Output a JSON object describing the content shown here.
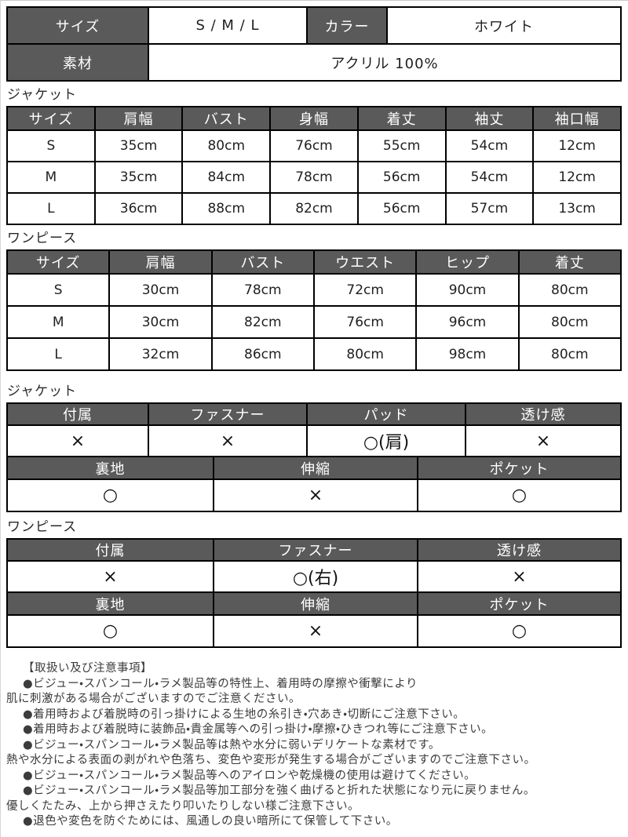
{
  "colors": {
    "header_bg": "#5a5a5a",
    "header_text": "#ffffff",
    "border": "#000000",
    "page_bg": "#ffffff"
  },
  "spec_table": {
    "size_label": "サイズ",
    "size_value": "S / M / L",
    "color_label": "カラー",
    "color_value": "ホワイト",
    "material_label": "素材",
    "material_value": "アクリル 100%"
  },
  "jacket_size": {
    "section_label": "ジャケット",
    "headers": [
      "サイズ",
      "肩幅",
      "バスト",
      "身幅",
      "着丈",
      "袖丈",
      "袖口幅"
    ],
    "rows": [
      [
        "S",
        "35cm",
        "80cm",
        "76cm",
        "55cm",
        "54cm",
        "12cm"
      ],
      [
        "M",
        "35cm",
        "84cm",
        "78cm",
        "56cm",
        "54cm",
        "12cm"
      ],
      [
        "L",
        "36cm",
        "88cm",
        "82cm",
        "56cm",
        "57cm",
        "13cm"
      ]
    ]
  },
  "onepiece_size": {
    "section_label": "ワンピース",
    "headers": [
      "サイズ",
      "肩幅",
      "バスト",
      "ウエスト",
      "ヒップ",
      "着丈"
    ],
    "rows": [
      [
        "S",
        "30cm",
        "78cm",
        "72cm",
        "90cm",
        "80cm"
      ],
      [
        "M",
        "30cm",
        "82cm",
        "76cm",
        "96cm",
        "80cm"
      ],
      [
        "L",
        "32cm",
        "86cm",
        "80cm",
        "98cm",
        "80cm"
      ]
    ]
  },
  "jacket_features": {
    "section_label": "ジャケット",
    "part1": {
      "headers": [
        "付属",
        "ファスナー",
        "パッド",
        "透け感"
      ],
      "values": [
        "×",
        "×",
        "○(肩)",
        "×"
      ]
    },
    "part2": {
      "headers": [
        "裏地",
        "伸縮",
        "ポケット"
      ],
      "values": [
        "○",
        "×",
        "○"
      ]
    }
  },
  "onepiece_features": {
    "section_label": "ワンピース",
    "part1": {
      "headers": [
        "付属",
        "ファスナー",
        "透け感"
      ],
      "values": [
        "×",
        "○(右)",
        "×"
      ]
    },
    "part2": {
      "headers": [
        "裏地",
        "伸縮",
        "ポケット"
      ],
      "values": [
        "○",
        "×",
        "○"
      ]
    }
  },
  "notes": {
    "title": "【取扱い及び注意事項】",
    "lines": [
      {
        "text": "●ビジュー・スパンコール・ラメ製品等の特性上、着用時の摩擦や衝撃により",
        "indent": true
      },
      {
        "text": "肌に刺激がある場合がございますのでご注意ください。",
        "indent": false
      },
      {
        "text": "●着用時および着脱時の引っ掛けによる生地の糸引き・穴あき・切断にご注意下さい。",
        "indent": true
      },
      {
        "text": "●着用時および着脱時に装飾品・貴金属等への引っ掛け・摩擦・ひきつれ等にご注意下さい。",
        "indent": true
      },
      {
        "text": "●ビジュー・スパンコール・ラメ製品等は熱や水分に弱いデリケートな素材です。",
        "indent": true
      },
      {
        "text": "熱や水分による表面の剥がれや色落ち、変色や変形が発生する場合がございますのでご注意下さい。",
        "indent": false
      },
      {
        "text": "●ビジュー・スパンコール・ラメ製品等へのアイロンや乾燥機の使用は避けてください。",
        "indent": true
      },
      {
        "text": "●ビジュー・スパンコール・ラメ製品等加工部分を強く曲げると折れた状態になり元に戻りません。",
        "indent": true
      },
      {
        "text": "優しくたたみ、上から押さえたり叩いたりしない様ご注意下さい。",
        "indent": false
      },
      {
        "text": "●退色や変色を防ぐためには、風通しの良い暗所にて保管して下さい。",
        "indent": true
      }
    ]
  }
}
